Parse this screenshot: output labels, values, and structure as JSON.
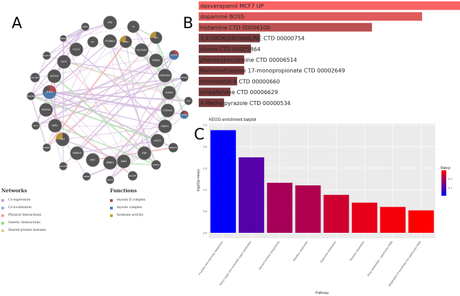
{
  "panels": {
    "a": "A",
    "b": "B",
    "c": "C"
  },
  "network": {
    "nodes": [
      {
        "id": "PPIE",
        "r": 10
      },
      {
        "id": "TH",
        "r": 9
      },
      {
        "id": "HIPPL",
        "r": 6
      },
      {
        "id": "FTCDNL1",
        "r": 10
      },
      {
        "id": "PPL",
        "r": 8
      },
      {
        "id": "POMC",
        "r": 9,
        "fn": "hormone"
      },
      {
        "id": "AVP",
        "r": 9,
        "fn": "hormone"
      },
      {
        "id": "CSPG4",
        "r": 5
      },
      {
        "id": "CCL21",
        "r": 10
      },
      {
        "id": "SLC22A3",
        "r": 10
      },
      {
        "id": "C6orf141",
        "r": 6
      },
      {
        "id": "MYH13",
        "r": 7,
        "fn": "myosin"
      },
      {
        "id": "SLIT2",
        "r": 10
      },
      {
        "id": "PGR0S",
        "r": 10
      },
      {
        "id": "SLC18A3",
        "r": 7
      },
      {
        "id": "ZDTHS",
        "r": 10
      },
      {
        "id": "FAM149A",
        "r": 10
      },
      {
        "id": "PYGO1",
        "r": 6
      },
      {
        "id": "MYH2",
        "r": 10,
        "fn": "myosin"
      },
      {
        "id": "3USD5",
        "r": 10
      },
      {
        "id": "SLEDBL",
        "r": 6
      },
      {
        "id": "OTP",
        "r": 6
      },
      {
        "id": "TENT5H",
        "r": 10
      },
      {
        "id": "FCRH1A",
        "r": 10
      },
      {
        "id": "RXY1",
        "r": 6
      },
      {
        "id": "MYH4",
        "r": 6,
        "fn": "myosin"
      },
      {
        "id": "GPR1",
        "r": 10
      },
      {
        "id": "DARX1",
        "r": 10
      },
      {
        "id": "CST",
        "r": 10,
        "fn": "hormone"
      },
      {
        "id": "CHST3",
        "r": 10
      },
      {
        "id": "DUNND1",
        "r": 6
      },
      {
        "id": "SEMA3A",
        "r": 7
      },
      {
        "id": "OSBPL3",
        "r": 10
      },
      {
        "id": "ENH",
        "r": 10
      },
      {
        "id": "SLC13A5",
        "r": 6
      },
      {
        "id": "NFIC",
        "r": 10
      },
      {
        "id": "NPBR1",
        "r": 10
      },
      {
        "id": "XAB2",
        "r": 10
      },
      {
        "id": "SHISA3",
        "r": 7
      },
      {
        "id": "TRBD2",
        "r": 6
      },
      {
        "id": "OR2V2",
        "r": 6
      },
      {
        "id": "GALGP5",
        "r": 7
      }
    ],
    "legend": {
      "networks_title": "Networks",
      "networks": [
        {
          "label": "Co-expression",
          "color": "#c9a6d6"
        },
        {
          "label": "Co-localization",
          "color": "#98b0dc"
        },
        {
          "label": "Physical Interactions",
          "color": "#f0a0a0"
        },
        {
          "label": "Genetic Interactions",
          "color": "#90d890"
        },
        {
          "label": "Shared protein domains",
          "color": "#d8d090"
        }
      ],
      "functions_title": "Functions",
      "functions": [
        {
          "label": "myosin II complex",
          "color": "#b04a4a"
        },
        {
          "label": "myosin complex",
          "color": "#4a80b0"
        },
        {
          "label": "hormone activity",
          "color": "#d09a30"
        }
      ]
    }
  },
  "chart_data": [
    {
      "type": "bar",
      "orientation": "horizontal",
      "title": "",
      "categories": [
        "dexverapamil MCF7 UP",
        "dopamine BOSS",
        "histamine CTD 00006100",
        "3,4-DICHLOROANILINE CTD 00000754",
        "diuron CTD 00005864",
        "phenoxybenzamine CTD 00006514",
        "Beclomethasone 17-monopropionate CTD 00002649",
        "trichostatin A CTD 00000660",
        "propafenone CTD 00006629",
        "4-Methylpyrazole CTD 00000534"
      ],
      "values": [
        1.0,
        0.855,
        0.663,
        0.234,
        0.2,
        0.174,
        0.174,
        0.147,
        0.121,
        0.097
      ]
    },
    {
      "type": "bar",
      "title": "KEGG enrichment barplot",
      "xlabel": "Pathway",
      "ylabel": "-log10(p-value)",
      "ylim": [
        0,
        2.5
      ],
      "yticks": [
        "0.0",
        "0.5",
        "1.0",
        "1.5",
        "2.0",
        "2.5"
      ],
      "categories": [
        "Fructose and mannose metabolism",
        "Amino sugar and nucleotide sugar metabolism",
        "Steroid hormone biosynthesis",
        "Histidine metabolism",
        "Galactose metabolism",
        "Tyrosine metabolism",
        "Drug metabolism - cytochrome P450",
        "Metabolism of xenobiotics by cytochrome P450"
      ],
      "values": [
        2.38,
        1.75,
        1.16,
        1.1,
        0.88,
        0.7,
        0.6,
        0.52
      ],
      "legend": {
        "title": "Raw.p",
        "ticks": [
          "0.2",
          "0.1"
        ],
        "low_color": "#0000ff",
        "high_color": "#ff0000",
        "position": "right"
      }
    }
  ]
}
